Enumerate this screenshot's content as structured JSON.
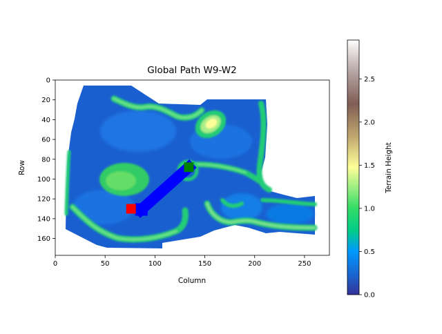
{
  "chart_data": {
    "type": "heatmap",
    "title": "Global Path W9-W2",
    "xlabel": "Column",
    "ylabel": "Row",
    "xlim": [
      0,
      275
    ],
    "ylim": [
      177,
      0
    ],
    "x_ticks": [
      0,
      50,
      100,
      150,
      200,
      250
    ],
    "y_ticks": [
      0,
      20,
      40,
      60,
      80,
      100,
      120,
      140,
      160
    ],
    "colormap": "terrain",
    "colorbar": {
      "label": "Terrain Height",
      "range": [
        0.0,
        2.95
      ],
      "ticks": [
        0.0,
        0.5,
        1.0,
        1.5,
        2.0,
        2.5
      ]
    },
    "path": {
      "start": {
        "column": 76,
        "row": 130,
        "color": "#ff0000"
      },
      "goal": {
        "column": 134,
        "row": 88,
        "color": "#008000"
      },
      "color": "#0000ff"
    },
    "terrain_features": [
      {
        "type": "ridge",
        "column": 160,
        "row": 45,
        "height": 1.3
      },
      {
        "type": "ridge",
        "column": 80,
        "row": 100,
        "height": 0.9
      },
      {
        "type": "wall",
        "from": [
          60,
          20
        ],
        "to": [
          140,
          35
        ],
        "height": 0.9
      },
      {
        "type": "wall",
        "from": [
          200,
          135
        ],
        "to": [
          255,
          145
        ],
        "height": 0.8
      }
    ]
  }
}
